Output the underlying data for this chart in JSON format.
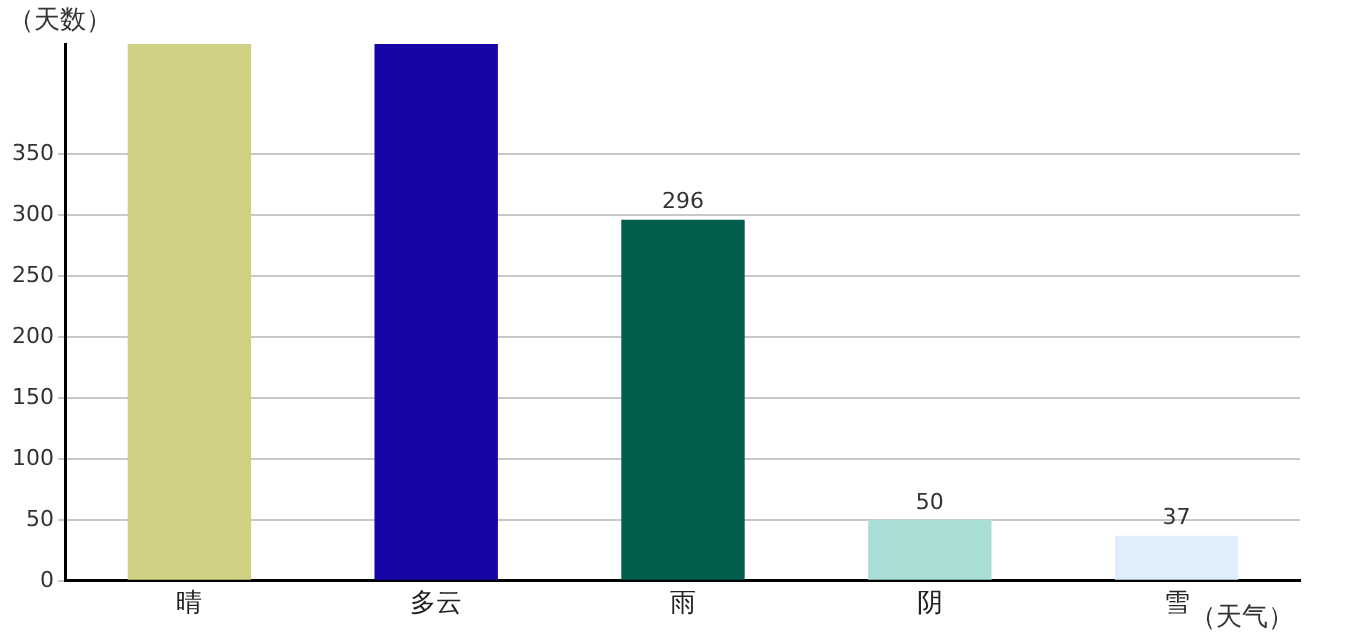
{
  "chart_data": {
    "type": "bar",
    "xlabel": "（天气）",
    "ylabel": "（天数）",
    "categories": [
      "晴",
      "多云",
      "雨",
      "阴",
      "雪"
    ],
    "values": [
      440,
      440,
      296,
      50,
      37
    ],
    "colors": [
      "#d0d082",
      "#1506a5",
      "#025d4c",
      "#a9ded6",
      "#e0eefb"
    ],
    "value_labels": [
      null,
      null,
      "296",
      "50",
      "37"
    ],
    "ylim": [
      0,
      440
    ],
    "yticks": [
      0,
      50,
      100,
      150,
      200,
      250,
      300,
      350
    ],
    "grid": "y",
    "legend": false
  }
}
